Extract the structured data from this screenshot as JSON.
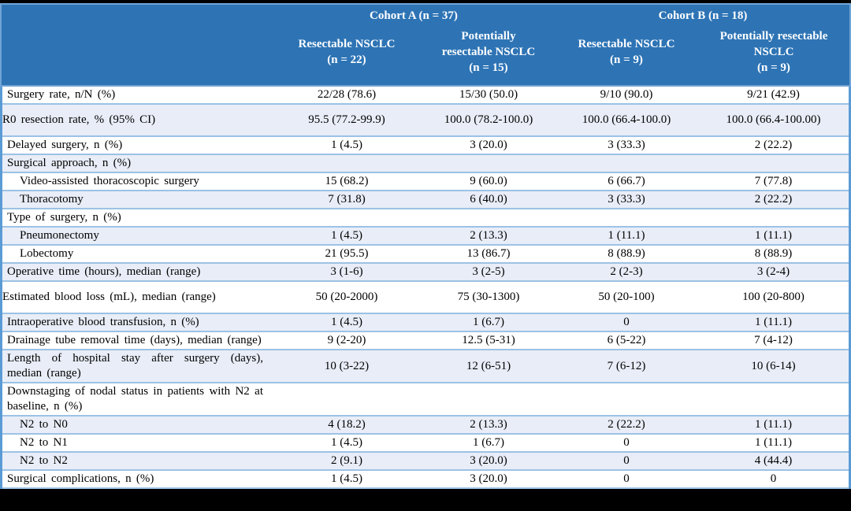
{
  "table": {
    "cohort_headers": [
      {
        "label": "Cohort A (n = 37)"
      },
      {
        "label": "Cohort B (n = 18)"
      }
    ],
    "column_headers": [
      {
        "label": "Resectable NSCLC\n(n = 22)"
      },
      {
        "label": "Potentially\nresectable NSCLC\n(n = 15)"
      },
      {
        "label": "Resectable NSCLC\n(n = 9)"
      },
      {
        "label": "Potentially resectable\nNSCLC\n(n = 9)"
      }
    ],
    "rows": [
      {
        "label": "Surgery rate, n/N (%)",
        "indent": false,
        "tall": false,
        "values": [
          "22/28 (78.6)",
          "15/30 (50.0)",
          "9/10 (90.0)",
          "9/21 (42.9)"
        ]
      },
      {
        "label": "R0 resection rate, % (95% CI)",
        "indent": false,
        "tall": true,
        "values": [
          "95.5 (77.2-99.9)",
          "100.0 (78.2-100.0)",
          "100.0 (66.4-100.0)",
          "100.0 (66.4-100.00)"
        ]
      },
      {
        "label": "Delayed surgery, n (%)",
        "indent": false,
        "tall": false,
        "values": [
          "1 (4.5)",
          "3 (20.0)",
          "3 (33.3)",
          "2 (22.2)"
        ]
      },
      {
        "label": "Surgical approach, n (%)",
        "indent": false,
        "tall": false,
        "values": [
          "",
          "",
          "",
          ""
        ]
      },
      {
        "label": "Video-assisted thoracoscopic surgery",
        "indent": true,
        "tall": false,
        "values": [
          "15 (68.2)",
          "9 (60.0)",
          "6 (66.7)",
          "7 (77.8)"
        ]
      },
      {
        "label": "Thoracotomy",
        "indent": true,
        "tall": false,
        "values": [
          "7 (31.8)",
          "6 (40.0)",
          "3 (33.3)",
          "2 (22.2)"
        ]
      },
      {
        "label": "Type of surgery, n (%)",
        "indent": false,
        "tall": false,
        "values": [
          "",
          "",
          "",
          ""
        ]
      },
      {
        "label": "Pneumonectomy",
        "indent": true,
        "tall": false,
        "values": [
          "1 (4.5)",
          "2 (13.3)",
          "1 (11.1)",
          "1 (11.1)"
        ]
      },
      {
        "label": "Lobectomy",
        "indent": true,
        "tall": false,
        "values": [
          "21 (95.5)",
          "13 (86.7)",
          "8 (88.9)",
          "8 (88.9)"
        ]
      },
      {
        "label": "Operative time (hours), median (range)",
        "indent": false,
        "tall": false,
        "values": [
          "3 (1-6)",
          "3 (2-5)",
          "2 (2-3)",
          "3 (2-4)"
        ]
      },
      {
        "label": "Estimated blood loss (mL), median (range)",
        "indent": false,
        "tall": true,
        "values": [
          "50 (20-2000)",
          "75 (30-1300)",
          "50 (20-100)",
          "100 (20-800)"
        ]
      },
      {
        "label": "Intraoperative blood transfusion, n (%)",
        "indent": false,
        "tall": false,
        "values": [
          "1 (4.5)",
          "1 (6.7)",
          "0",
          "1 (11.1)"
        ]
      },
      {
        "label": "Drainage tube removal time (days), median (range)",
        "indent": false,
        "tall": false,
        "values": [
          "9 (2-20)",
          "12.5 (5-31)",
          "6 (5-22)",
          "7 (4-12)"
        ]
      },
      {
        "label": "Length of hospital stay after surgery (days), median (range)",
        "indent": false,
        "tall": false,
        "values": [
          "10 (3-22)",
          "12 (6-51)",
          "7 (6-12)",
          "10 (6-14)"
        ]
      },
      {
        "label": "Downstaging of nodal status in patients with N2 at baseline, n (%)",
        "indent": false,
        "tall": false,
        "values": [
          "",
          "",
          "",
          ""
        ]
      },
      {
        "label": "N2 to N0",
        "indent": true,
        "tall": false,
        "values": [
          "4 (18.2)",
          "2 (13.3)",
          "2 (22.2)",
          "1 (11.1)"
        ]
      },
      {
        "label": "N2 to N1",
        "indent": true,
        "tall": false,
        "values": [
          "1 (4.5)",
          "1 (6.7)",
          "0",
          "1 (11.1)"
        ]
      },
      {
        "label": "N2 to N2",
        "indent": true,
        "tall": false,
        "values": [
          "2 (9.1)",
          "3 (20.0)",
          "0",
          "4 (44.4)"
        ]
      },
      {
        "label": "Surgical complications, n (%)",
        "indent": false,
        "tall": false,
        "values": [
          "1 (4.5)",
          "3 (20.0)",
          "0",
          "0"
        ]
      }
    ]
  },
  "colors": {
    "header_fill": "#2e74b5",
    "header_outline": "#71a3d6",
    "header_text": "#ffffff",
    "row_alt_fill": "#e8edf7",
    "row_separator": "#9cc2e5",
    "side_border": "#5b9bd5",
    "frame": "#000000",
    "body_text": "#000000"
  }
}
